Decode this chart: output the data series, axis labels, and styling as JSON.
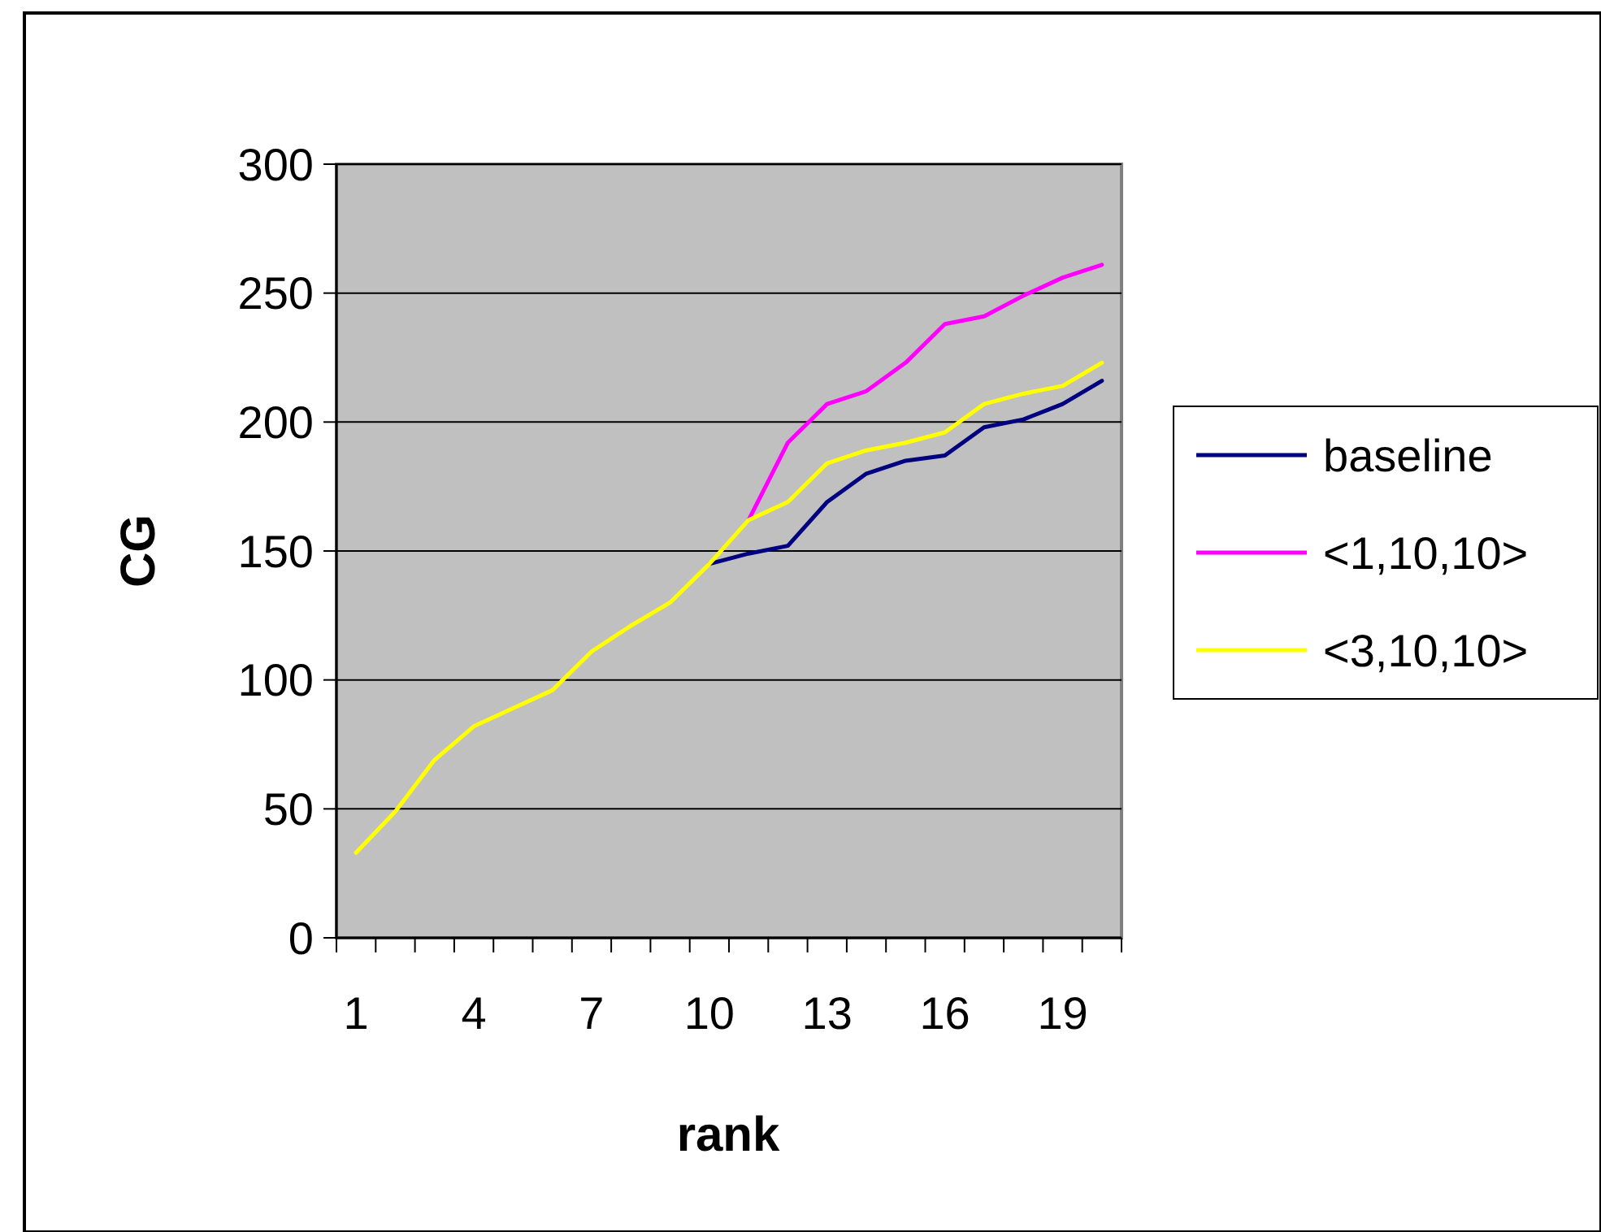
{
  "chart_data": {
    "type": "line",
    "xlabel": "rank",
    "ylabel": "CG",
    "categories": [
      "1",
      null,
      null,
      "4",
      null,
      null,
      "7",
      null,
      null,
      "10",
      null,
      null,
      "13",
      null,
      null,
      "16",
      null,
      null,
      "19",
      null
    ],
    "series": [
      {
        "name": "baseline",
        "color": "#000080",
        "values": [
          null,
          null,
          null,
          null,
          null,
          null,
          null,
          null,
          null,
          145,
          149,
          152,
          169,
          180,
          185,
          187,
          198,
          201,
          207,
          216
        ]
      },
      {
        "name": "<1,10,10>",
        "color": "#ff00ff",
        "values": [
          null,
          null,
          null,
          null,
          null,
          null,
          null,
          null,
          null,
          null,
          162,
          192,
          207,
          212,
          223,
          238,
          241,
          249,
          256,
          261
        ]
      },
      {
        "name": "<3,10,10>",
        "color": "#ffff00",
        "values": [
          33,
          49,
          69,
          82,
          89,
          96,
          111,
          121,
          130,
          145,
          162,
          169,
          184,
          189,
          192,
          196,
          207,
          211,
          214,
          223
        ]
      }
    ],
    "ylim": [
      0,
      300
    ],
    "yticks": [
      0,
      50,
      100,
      150,
      200,
      250,
      300
    ],
    "grid": "y",
    "legend": "right",
    "marker": "none",
    "line_style": "solid"
  }
}
